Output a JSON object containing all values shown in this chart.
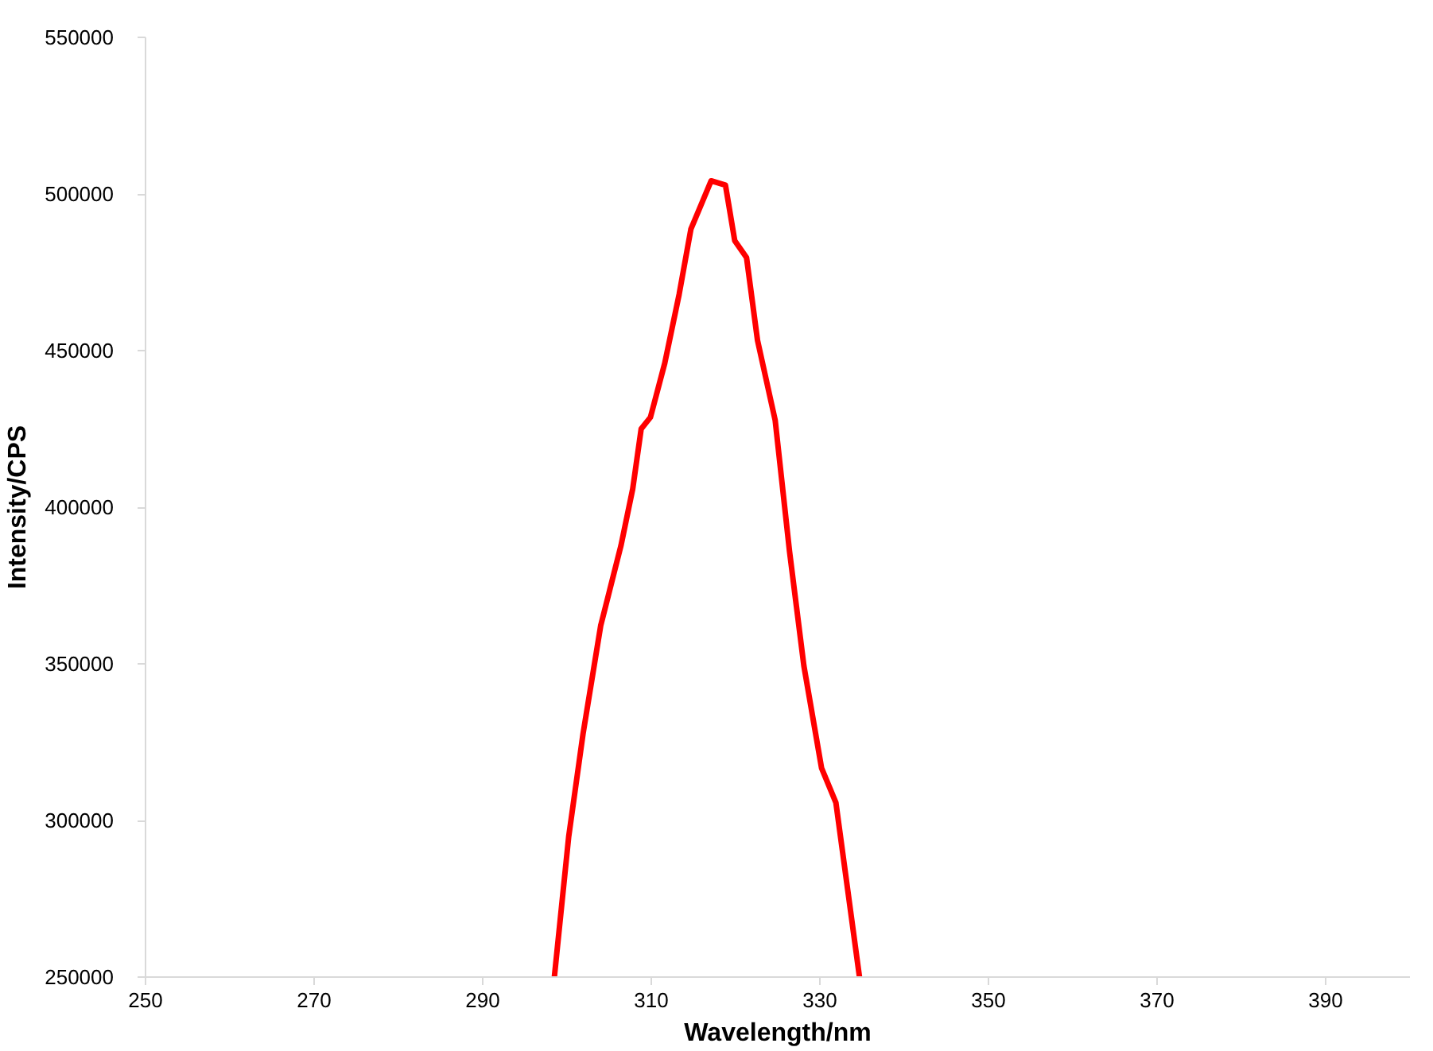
{
  "chart_data": {
    "type": "line",
    "xlabel": "Wavelength/nm",
    "ylabel": "Intensity/CPS",
    "x": [
      298.5,
      300.2,
      301.9,
      304.0,
      306.4,
      307.8,
      308.8,
      309.9,
      311.6,
      313.3,
      314.7,
      315.7,
      317.1,
      318.8,
      319.9,
      321.3,
      322.6,
      324.7,
      326.4,
      328.1,
      330.2,
      331.9,
      334.7
    ],
    "series": [
      {
        "color": "#ff0000",
        "values": [
          250000,
          294800,
          327600,
          362200,
          387700,
          405900,
          425000,
          428700,
          446000,
          467900,
          488800,
          495200,
          504200,
          502800,
          485100,
          479700,
          453300,
          427700,
          385900,
          349400,
          316700,
          305700,
          250000
        ]
      }
    ],
    "xlim": [
      250,
      400
    ],
    "xticks": [
      250,
      270,
      290,
      310,
      330,
      350,
      370,
      390
    ],
    "ylim": [
      250000,
      550000
    ],
    "yticks": [
      250000,
      300000,
      350000,
      400000,
      450000,
      500000,
      550000
    ],
    "grid": false,
    "marker": "none",
    "line_style": "solid"
  }
}
